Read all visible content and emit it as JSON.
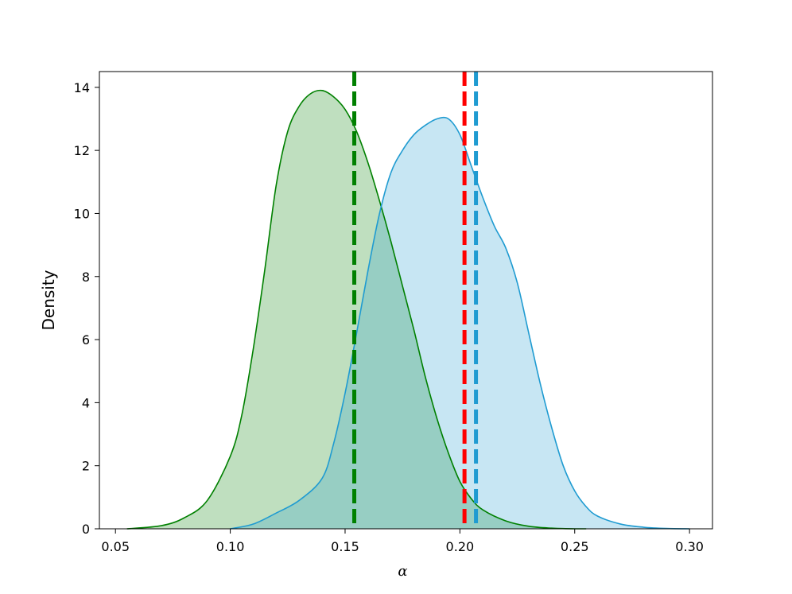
{
  "chart_data": {
    "type": "area",
    "xlabel": "α",
    "ylabel": "Density",
    "xlim": [
      0.043,
      0.31
    ],
    "ylim": [
      0,
      14.5
    ],
    "x_ticks": [
      "0.05",
      "0.10",
      "0.15",
      "0.20",
      "0.25",
      "0.30"
    ],
    "x_tick_values": [
      0.05,
      0.1,
      0.15,
      0.2,
      0.25,
      0.3
    ],
    "y_ticks": [
      "0",
      "2",
      "4",
      "6",
      "8",
      "10",
      "12",
      "14"
    ],
    "y_tick_values": [
      0,
      2,
      4,
      6,
      8,
      10,
      12,
      14
    ],
    "grid": false,
    "series": [
      {
        "color": "#008000",
        "fill": "rgba(0,128,0,0.25)",
        "x": [
          0.055,
          0.07,
          0.08,
          0.09,
          0.1,
          0.105,
          0.11,
          0.115,
          0.12,
          0.125,
          0.13,
          0.135,
          0.14,
          0.145,
          0.15,
          0.155,
          0.16,
          0.165,
          0.17,
          0.175,
          0.18,
          0.185,
          0.19,
          0.195,
          0.2,
          0.205,
          0.21,
          0.22,
          0.23,
          0.24,
          0.25,
          0.255
        ],
        "y": [
          0,
          0.1,
          0.35,
          0.9,
          2.3,
          3.6,
          5.7,
          8.2,
          10.9,
          12.6,
          13.4,
          13.8,
          13.9,
          13.7,
          13.3,
          12.6,
          11.6,
          10.4,
          9.1,
          7.7,
          6.3,
          4.8,
          3.5,
          2.4,
          1.5,
          0.95,
          0.6,
          0.25,
          0.08,
          0.02,
          0.0,
          0
        ]
      },
      {
        "color": "#1f9bd1",
        "fill": "rgba(31,155,209,0.25)",
        "x": [
          0.1,
          0.11,
          0.12,
          0.13,
          0.14,
          0.145,
          0.15,
          0.155,
          0.16,
          0.165,
          0.17,
          0.175,
          0.18,
          0.185,
          0.19,
          0.195,
          0.2,
          0.205,
          0.21,
          0.215,
          0.22,
          0.225,
          0.23,
          0.235,
          0.24,
          0.245,
          0.25,
          0.255,
          0.26,
          0.27,
          0.28,
          0.29,
          0.3
        ],
        "y": [
          0,
          0.15,
          0.5,
          0.9,
          1.6,
          2.7,
          4.3,
          6.2,
          8.2,
          10.0,
          11.3,
          12.0,
          12.5,
          12.8,
          13.0,
          13.0,
          12.5,
          11.5,
          10.5,
          9.6,
          8.9,
          7.8,
          6.2,
          4.6,
          3.2,
          2.0,
          1.2,
          0.7,
          0.4,
          0.15,
          0.05,
          0.01,
          0
        ]
      }
    ],
    "vlines": [
      {
        "x": 0.154,
        "color": "#008000"
      },
      {
        "x": 0.202,
        "color": "#ff0000"
      },
      {
        "x": 0.207,
        "color": "#1f9bd1"
      }
    ]
  }
}
